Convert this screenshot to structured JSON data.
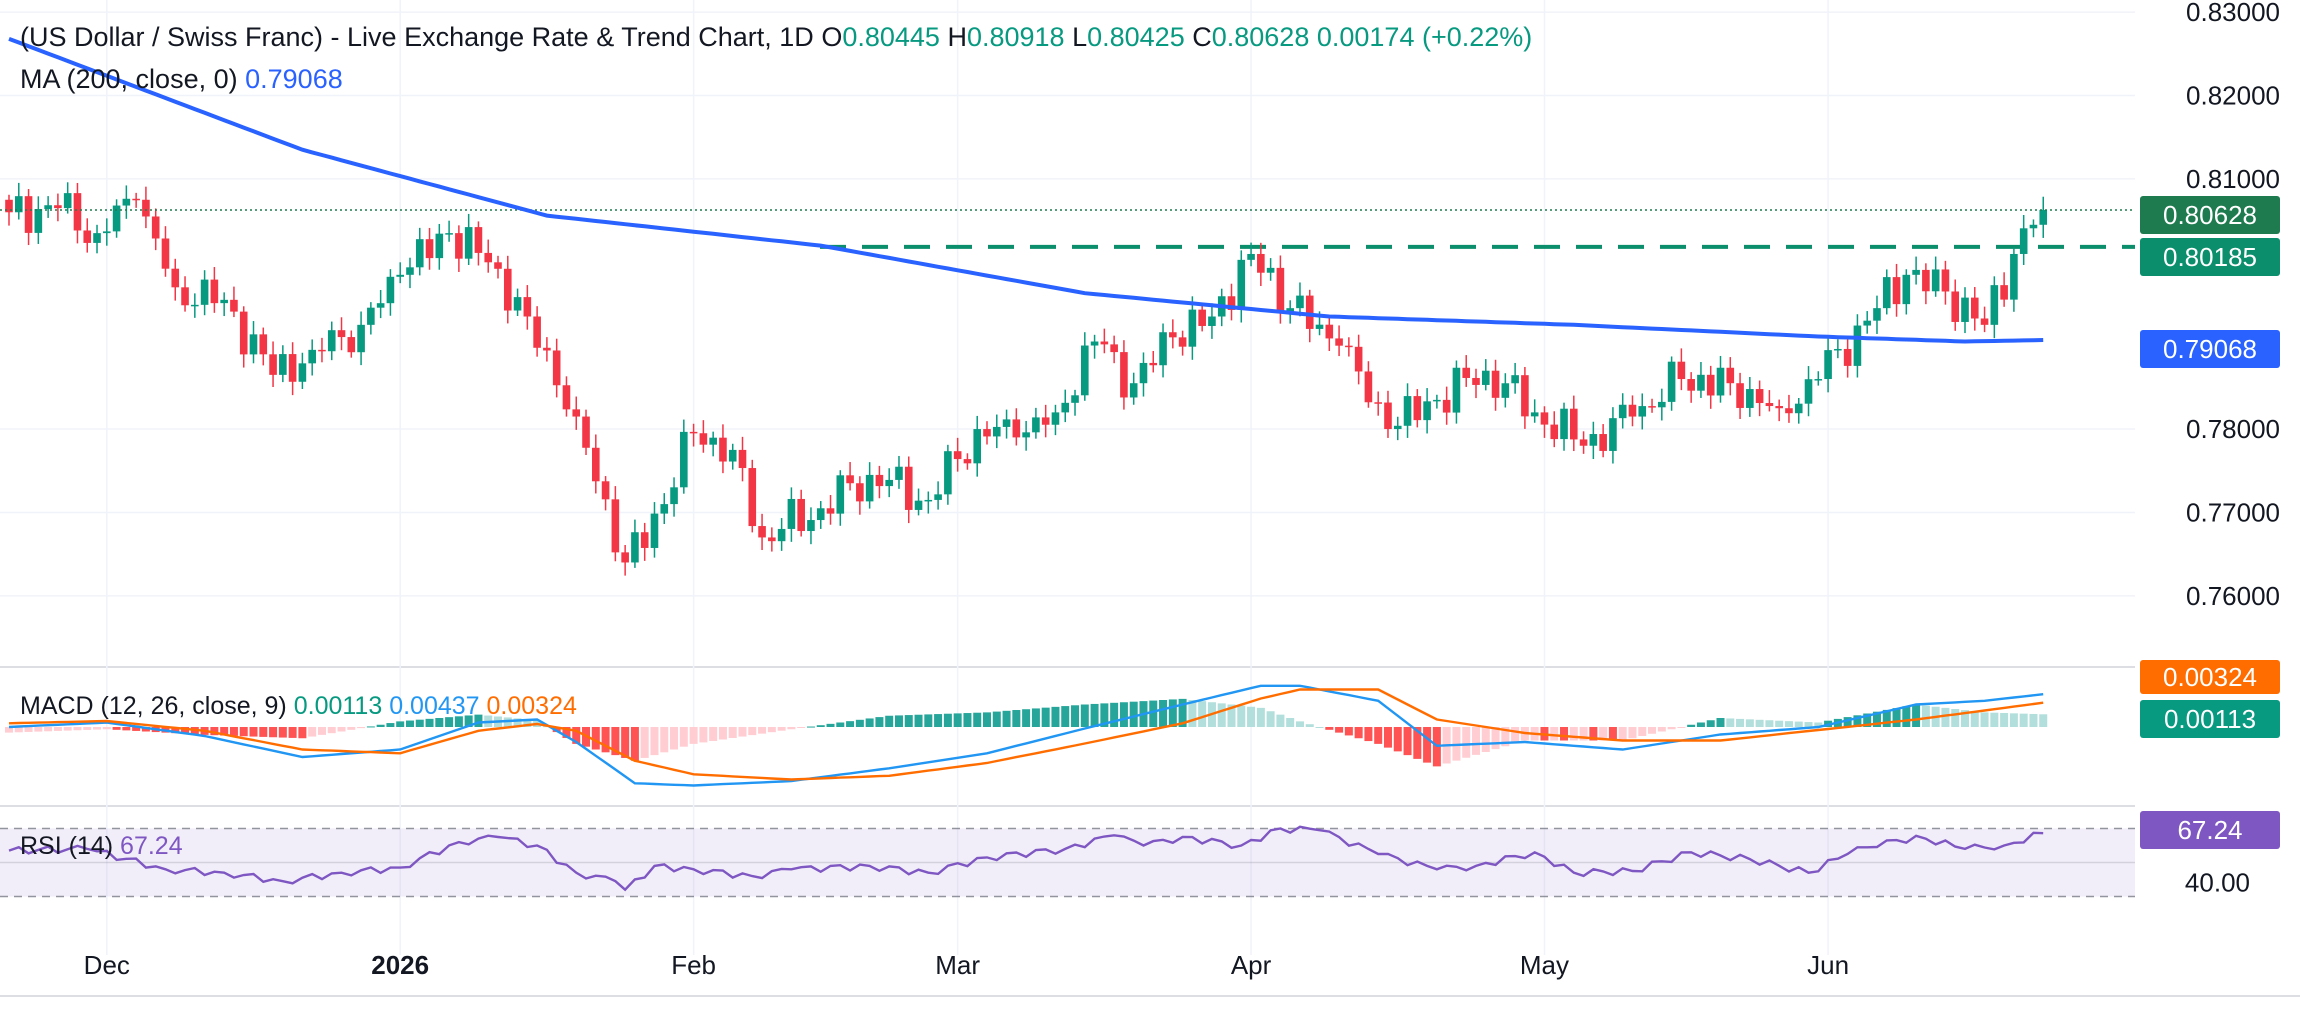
{
  "header": {
    "title": "(US Dollar / Swiss Franc) - Live Exchange Rate & Trend Chart, 1D",
    "o_label": "O",
    "o_value": "0.80445",
    "h_label": "H",
    "h_value": "0.80918",
    "l_label": "L",
    "l_value": "0.80425",
    "c_label": "C",
    "c_value": "0.80628",
    "change": "0.00174 (+0.22%)",
    "ma_label": "MA (200, close, 0)",
    "ma_value": "0.79068"
  },
  "macd_header": {
    "label": "MACD (12, 26, close, 9)",
    "histogram": "0.00113",
    "macd": "0.00437",
    "signal": "0.00324"
  },
  "rsi_header": {
    "label": "RSI (14)",
    "value": "67.24"
  },
  "price_pills": {
    "close": "0.80628",
    "resistance": "0.80185",
    "ma": "0.79068",
    "signal": "0.00324",
    "histogram": "0.00113",
    "rsi": "67.24"
  },
  "colors": {
    "up": "#089981",
    "down": "#f23645",
    "ma": "#2962ff",
    "macd": "#2196f3",
    "signal": "#ff6d00",
    "rsi": "#7e57c2",
    "resistance": "#0b8e6c"
  },
  "chart_data": [
    {
      "type": "candlestick",
      "title": "(US Dollar / Swiss Franc) - Live Exchange Rate & Trend Chart, 1D",
      "y_ticks": [
        "0.83000",
        "0.82000",
        "0.81000",
        "0.78000",
        "0.77000",
        "0.76000"
      ],
      "ylim": [
        0.7565,
        0.8305
      ],
      "x_ticks": [
        "Dec",
        "2026",
        "Feb",
        "Mar",
        "Apr",
        "May",
        "Jun"
      ],
      "resistance_level": 0.80185,
      "last_close": 0.80628,
      "anchors": [
        {
          "i": 0,
          "c": 0.806
        },
        {
          "i": 5,
          "c": 0.8065
        },
        {
          "i": 9,
          "c": 0.8035
        },
        {
          "i": 13,
          "c": 0.8075
        },
        {
          "i": 17,
          "c": 0.797
        },
        {
          "i": 22,
          "c": 0.7955
        },
        {
          "i": 27,
          "c": 0.7865
        },
        {
          "i": 31,
          "c": 0.7895
        },
        {
          "i": 36,
          "c": 0.7925
        },
        {
          "i": 40,
          "c": 0.7985
        },
        {
          "i": 45,
          "c": 0.8035
        },
        {
          "i": 49,
          "c": 0.8
        },
        {
          "i": 53,
          "c": 0.7935
        },
        {
          "i": 58,
          "c": 0.7815
        },
        {
          "i": 63,
          "c": 0.764
        },
        {
          "i": 67,
          "c": 0.771
        },
        {
          "i": 70,
          "c": 0.7795
        },
        {
          "i": 74,
          "c": 0.7775
        },
        {
          "i": 77,
          "c": 0.767
        },
        {
          "i": 83,
          "c": 0.7705
        },
        {
          "i": 88,
          "c": 0.7745
        },
        {
          "i": 94,
          "c": 0.7715
        },
        {
          "i": 99,
          "c": 0.78
        },
        {
          "i": 103,
          "c": 0.779
        },
        {
          "i": 107,
          "c": 0.782
        },
        {
          "i": 111,
          "c": 0.7905
        },
        {
          "i": 115,
          "c": 0.7855
        },
        {
          "i": 119,
          "c": 0.791
        },
        {
          "i": 123,
          "c": 0.7935
        },
        {
          "i": 127,
          "c": 0.801
        },
        {
          "i": 131,
          "c": 0.7945
        },
        {
          "i": 136,
          "c": 0.79
        },
        {
          "i": 141,
          "c": 0.78
        },
        {
          "i": 146,
          "c": 0.7835
        },
        {
          "i": 151,
          "c": 0.787
        },
        {
          "i": 156,
          "c": 0.782
        },
        {
          "i": 161,
          "c": 0.778
        },
        {
          "i": 166,
          "c": 0.7815
        },
        {
          "i": 171,
          "c": 0.786
        },
        {
          "i": 176,
          "c": 0.7855
        },
        {
          "i": 181,
          "c": 0.7825
        },
        {
          "i": 185,
          "c": 0.786
        },
        {
          "i": 190,
          "c": 0.793
        },
        {
          "i": 194,
          "c": 0.7985
        },
        {
          "i": 198,
          "c": 0.7965
        },
        {
          "i": 202,
          "c": 0.7925
        },
        {
          "i": 205,
          "c": 0.801
        },
        {
          "i": 207,
          "c": 0.8045
        },
        {
          "i": 208,
          "c": 0.80628
        }
      ],
      "ma200": {
        "name": "MA (200, close, 0)",
        "x_index": [
          0,
          30,
          55,
          83,
          110,
          135,
          160,
          185,
          200,
          208
        ],
        "values": [
          0.8268,
          0.8135,
          0.8056,
          0.802,
          0.7963,
          0.7935,
          0.7925,
          0.7911,
          0.7905,
          0.79068
        ]
      }
    },
    {
      "type": "line",
      "title": "MACD (12, 26, close, 9)",
      "x_index": [
        0,
        10,
        20,
        30,
        40,
        48,
        54,
        58,
        64,
        70,
        80,
        90,
        100,
        110,
        120,
        128,
        132,
        140,
        146,
        155,
        165,
        175,
        185,
        195,
        202,
        208
      ],
      "series": [
        {
          "name": "MACD",
          "values": [
            0.0,
            0.0006,
            -0.0012,
            -0.004,
            -0.003,
            0.0006,
            0.001,
            -0.002,
            -0.0075,
            -0.0078,
            -0.0072,
            -0.0055,
            -0.0035,
            -0.0002,
            0.003,
            0.0055,
            0.0055,
            0.0035,
            -0.0025,
            -0.002,
            -0.003,
            -0.001,
            0.0,
            0.003,
            0.0035,
            0.00437
          ]
        },
        {
          "name": "Signal",
          "values": [
            0.0005,
            0.0008,
            -0.0005,
            -0.003,
            -0.0035,
            -0.0005,
            0.0004,
            -0.0005,
            -0.0045,
            -0.0063,
            -0.007,
            -0.0065,
            -0.0048,
            -0.0022,
            0.0005,
            0.0038,
            0.005,
            0.005,
            0.001,
            -0.0008,
            -0.0018,
            -0.0018,
            -0.0004,
            0.001,
            0.0022,
            0.00324
          ]
        }
      ]
    },
    {
      "type": "line",
      "title": "RSI (14)",
      "levels": [
        70,
        50,
        30
      ],
      "y_ticks": [
        "40.00"
      ],
      "x_index": [
        0,
        8,
        16,
        22,
        28,
        34,
        40,
        46,
        50,
        54,
        58,
        62,
        63,
        66,
        70,
        76,
        80,
        88,
        94,
        100,
        108,
        113,
        116,
        120,
        126,
        130,
        134,
        140,
        146,
        150,
        156,
        160,
        166,
        172,
        178,
        184,
        188,
        192,
        196,
        200,
        204,
        208
      ],
      "values": [
        57,
        58,
        46,
        44,
        39,
        44,
        47,
        62,
        65,
        60,
        44,
        39,
        34,
        48,
        46,
        42,
        46,
        48,
        44,
        53,
        58,
        66,
        60,
        65,
        60,
        70,
        69,
        55,
        46,
        48,
        56,
        44,
        45,
        56,
        52,
        44,
        55,
        63,
        64,
        58,
        60,
        67.24
      ]
    }
  ]
}
